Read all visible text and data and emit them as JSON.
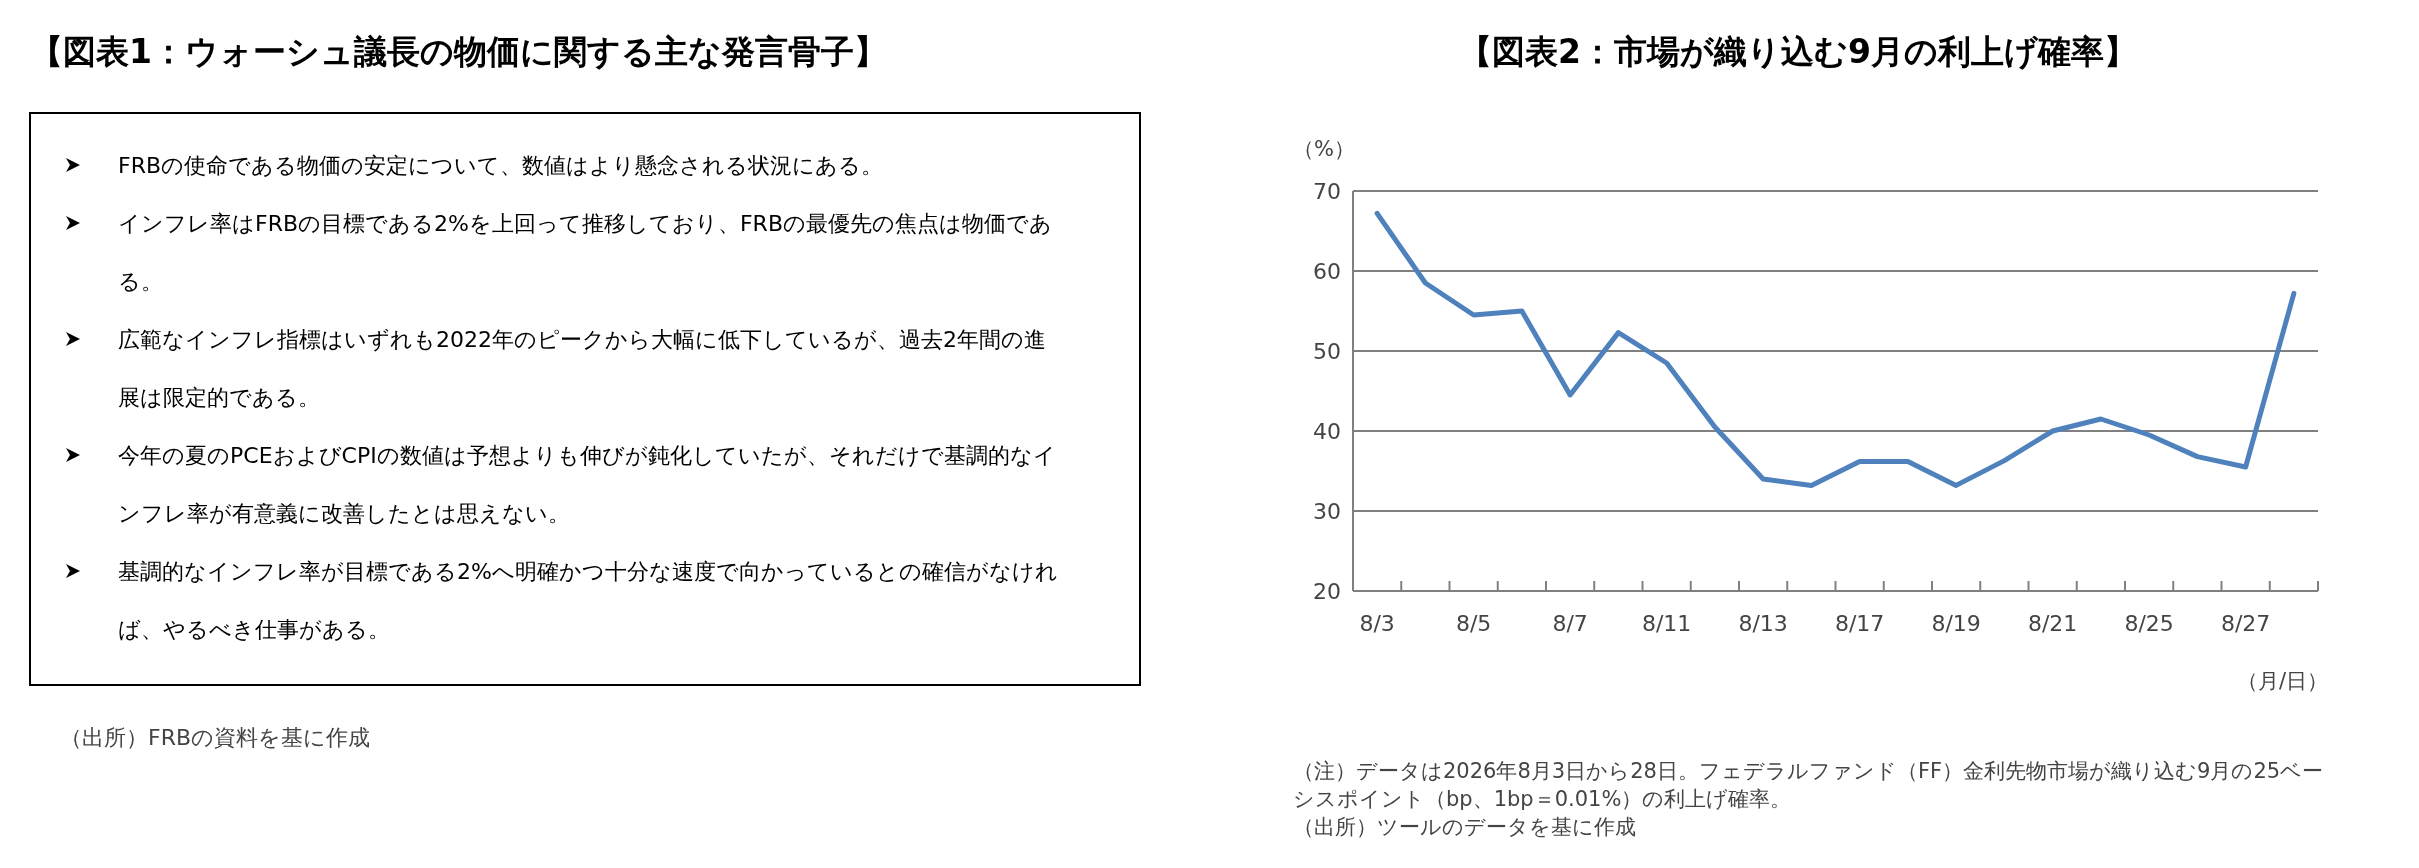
{
  "chart_data": [
    {
      "type": "other",
      "title": "【図表1：ウォーシュ議長の物価に関する主な発言骨子】",
      "annotations": [
        "FRBの使命である物価の安定について、数値はより懸念される状況にある。",
        "インフレ率はFRBの目標である2%を上回って推移しており、FRBの最優先の焦点は物価である。",
        "広範なインフレ指標はいずれも2022年のピークから大幅に低下しているが、過去2年間の進展は限定的である。",
        "今年の夏のPCEおよびCPIの数値は予想よりも伸びが鈍化していたが、それだけで基調的なインフレ率が有意義に改善したとは思えない。",
        "基調的なインフレ率が目標である2%へ明確かつ十分な速度で向かっているとの確信がなければ、やるべき仕事がある。",
        "（出所）FRBの資料を基に作成"
      ]
    },
    {
      "type": "line",
      "title": "【図表2：市場が織り込む9月の利上げ確率】",
      "ylabel": "（%）",
      "xlabel": "（月/日）",
      "categories": [
        "8/3",
        null,
        "8/5",
        null,
        "8/7",
        null,
        "8/11",
        null,
        "8/13",
        null,
        "8/17",
        null,
        "8/19",
        null,
        "8/21",
        null,
        "8/25",
        null,
        "8/27",
        null
      ],
      "series": [
        {
          "color": "#4f81bd",
          "values": [
            67.2,
            58.5,
            54.5,
            55,
            44.5,
            52.3,
            48.5,
            40.5,
            34,
            33.2,
            36.2,
            36.2,
            33.2,
            36.3,
            40,
            41.5,
            39.5,
            36.8,
            35.5,
            57.2
          ]
        }
      ],
      "ylim": [
        20,
        70
      ],
      "yticks": [
        20,
        30,
        40,
        50,
        60,
        70
      ],
      "grid": "y",
      "marker": "none",
      "line_style": "solid",
      "annotations": [
        "（注）データは2026年8月3日から28日。フェデラルファンド（FF）金利先物市場が織り込む9月の25ベーシスポイント（bp、1bp＝0.01%）の利上げ確率。",
        "（出所）ツールのデータを基に作成"
      ]
    }
  ]
}
